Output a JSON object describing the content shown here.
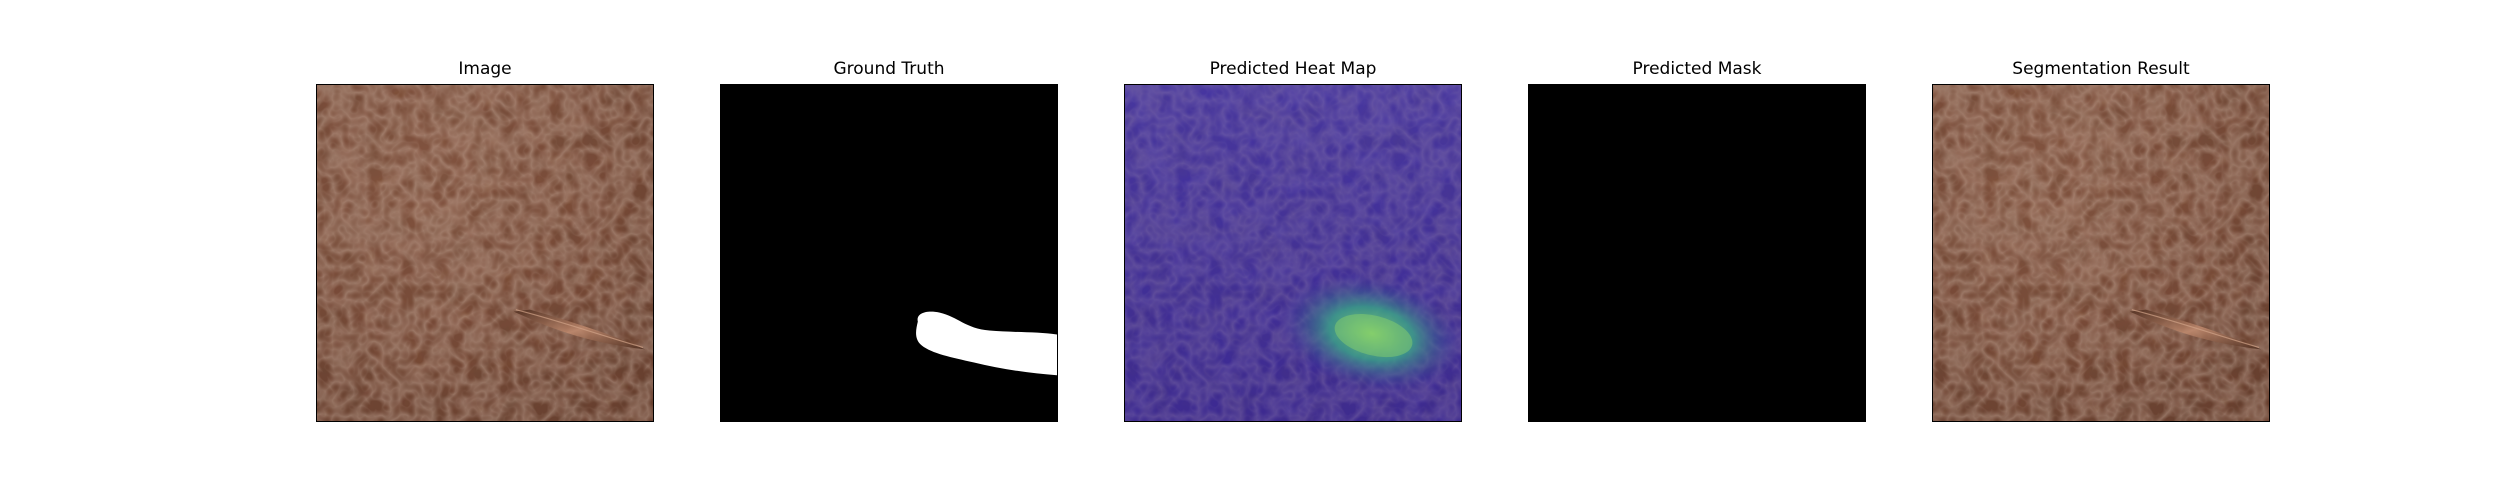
{
  "figure": {
    "panels": [
      {
        "id": "image",
        "title": "Image"
      },
      {
        "id": "ground-truth",
        "title": "Ground Truth"
      },
      {
        "id": "heatmap",
        "title": "Predicted Heat Map"
      },
      {
        "id": "predicted-mask",
        "title": "Predicted Mask"
      },
      {
        "id": "segmentation",
        "title": "Segmentation Result"
      }
    ]
  },
  "colors": {
    "leather": "#7a4b36",
    "leather_dark": "#5d3726",
    "leather_light": "#93624a",
    "mask_background": "#000000",
    "mask_foreground": "#ffffff",
    "heatmap_base": "#3d2b9a",
    "heatmap_hot_outer": "#2f8f8a",
    "heatmap_hot_inner": "#72c86e"
  }
}
